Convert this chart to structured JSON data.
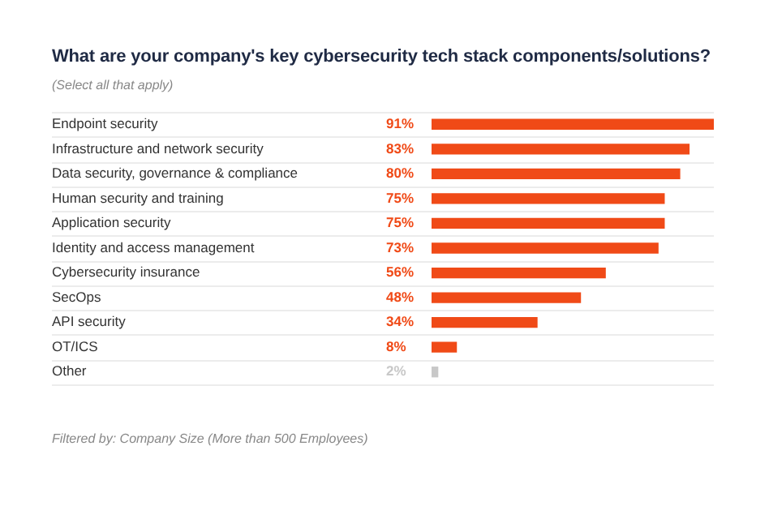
{
  "chart_data": {
    "type": "bar",
    "orientation": "horizontal",
    "title": "What are your company's key cybersecurity tech stack components/solutions?",
    "subtitle": "(Select all that apply)",
    "annotations": [
      "Filtered by: Company Size (More than 500 Employees)"
    ],
    "categories": [
      "Endpoint security",
      "Infrastructure and network security",
      "Data security, governance & compliance",
      "Human security and training",
      "Application security",
      "Identity and access management",
      "Cybersecurity insurance",
      "SecOps",
      "API security",
      "OT/ICS",
      "Other"
    ],
    "values": [
      91,
      83,
      80,
      75,
      75,
      73,
      56,
      48,
      34,
      8,
      2
    ],
    "value_labels": [
      "91%",
      "83%",
      "80%",
      "75%",
      "75%",
      "73%",
      "56%",
      "48%",
      "34%",
      "8%",
      "2%"
    ],
    "colors": [
      "#f04a17",
      "#f04a17",
      "#f04a17",
      "#f04a17",
      "#f04a17",
      "#f04a17",
      "#f04a17",
      "#f04a17",
      "#f04a17",
      "#f04a17",
      "#c8c8c8"
    ],
    "grid": "y"
  }
}
